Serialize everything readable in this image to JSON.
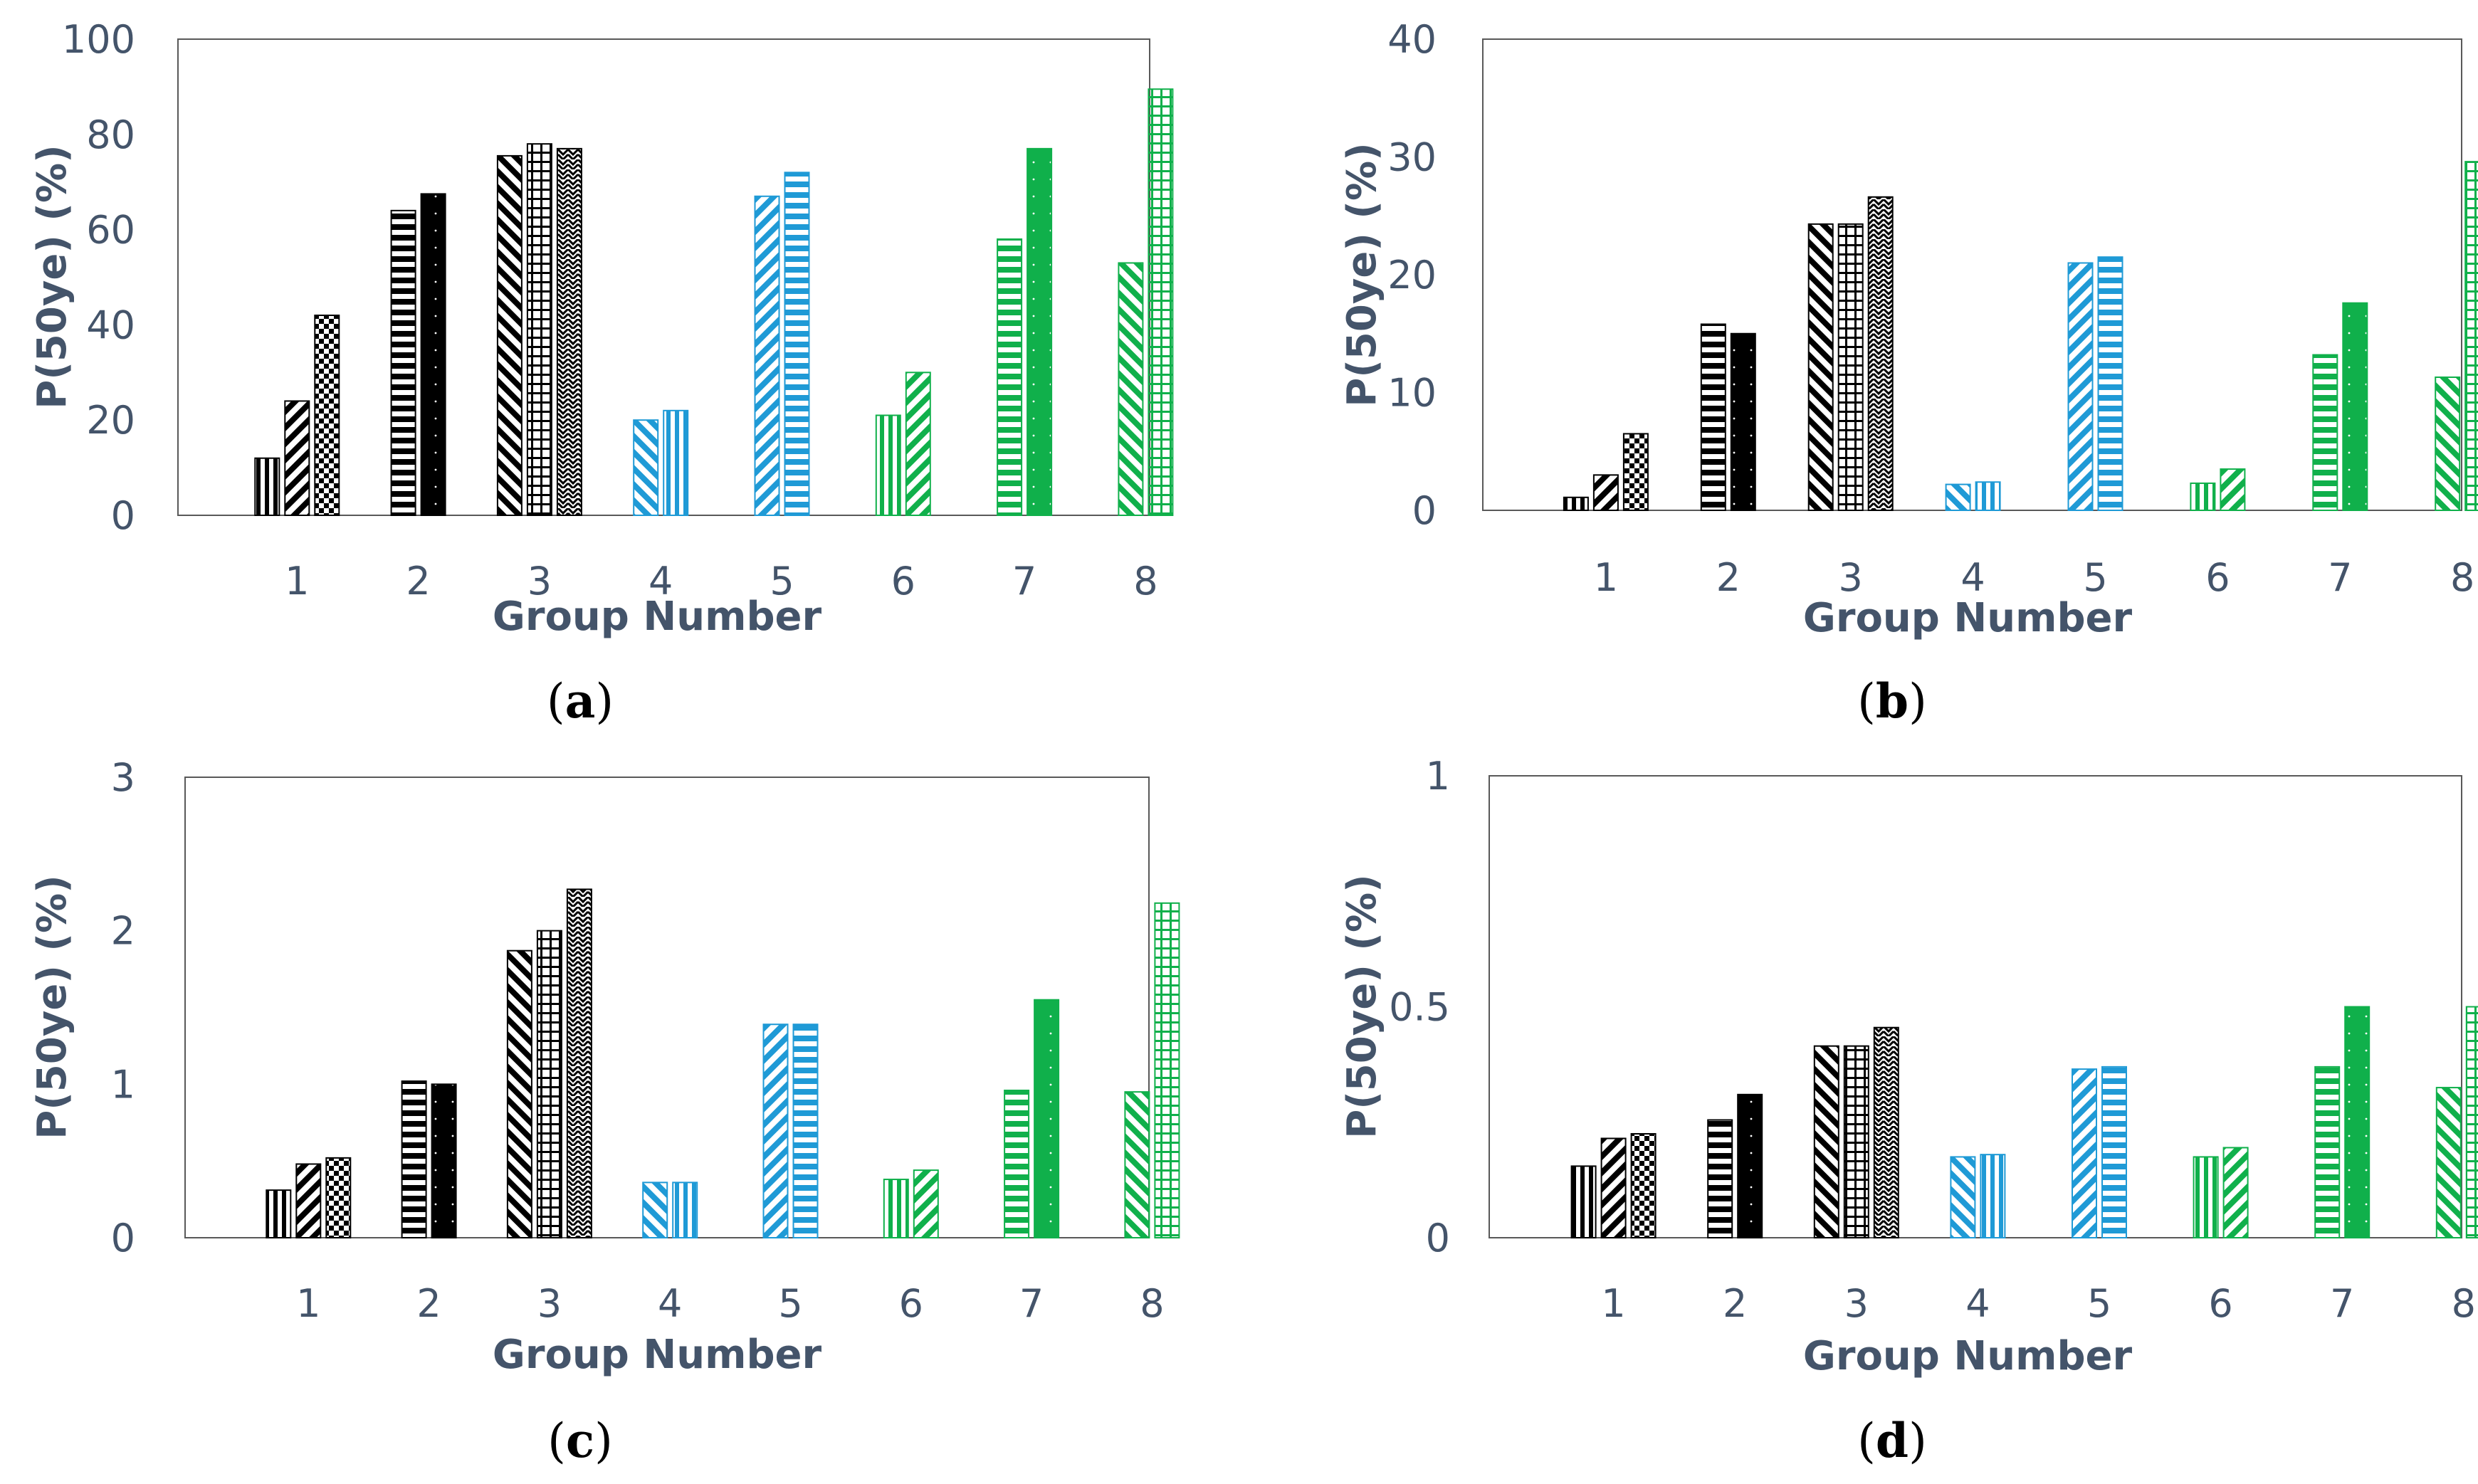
{
  "colors": {
    "black": "#000000",
    "blue": "#1f9ad6",
    "green": "#10b04b",
    "axis_text": "#44546a",
    "frame": "#595959"
  },
  "chart_data": [
    {
      "type": "bar",
      "panel_label": "a",
      "xlabel": "Group Number",
      "ylabel": "P(50ye) (%)",
      "ylim": [
        0,
        100
      ],
      "yticks": [
        "0",
        "20",
        "40",
        "60",
        "80",
        "100"
      ],
      "categories": [
        "1",
        "2",
        "3",
        "4",
        "5",
        "6",
        "7",
        "8"
      ],
      "groups": [
        {
          "category": "1",
          "bars": [
            {
              "value": 12,
              "color": "black",
              "pattern": "vstripe"
            },
            {
              "value": 24,
              "color": "black",
              "pattern": "diagup"
            },
            {
              "value": 42,
              "color": "black",
              "pattern": "check"
            }
          ]
        },
        {
          "category": "2",
          "bars": [
            {
              "value": 64,
              "color": "black",
              "pattern": "hstripe"
            },
            {
              "value": 67.5,
              "color": "black",
              "pattern": "solid"
            }
          ]
        },
        {
          "category": "3",
          "bars": [
            {
              "value": 75.5,
              "color": "black",
              "pattern": "diagdown"
            },
            {
              "value": 78,
              "color": "black",
              "pattern": "grid"
            },
            {
              "value": 77,
              "color": "black",
              "pattern": "zigzag"
            }
          ]
        },
        {
          "category": "4",
          "bars": [
            {
              "value": 20,
              "color": "blue",
              "pattern": "diagdown"
            },
            {
              "value": 22,
              "color": "blue",
              "pattern": "vstripe"
            }
          ]
        },
        {
          "category": "5",
          "bars": [
            {
              "value": 67,
              "color": "blue",
              "pattern": "diagup"
            },
            {
              "value": 72,
              "color": "blue",
              "pattern": "hstripe"
            }
          ]
        },
        {
          "category": "6",
          "bars": [
            {
              "value": 21,
              "color": "green",
              "pattern": "vstripe"
            },
            {
              "value": 30,
              "color": "green",
              "pattern": "diagup"
            }
          ]
        },
        {
          "category": "7",
          "bars": [
            {
              "value": 58,
              "color": "green",
              "pattern": "hstripe"
            },
            {
              "value": 77,
              "color": "green",
              "pattern": "solid"
            }
          ]
        },
        {
          "category": "8",
          "bars": [
            {
              "value": 53,
              "color": "green",
              "pattern": "diagdown"
            },
            {
              "value": 89.5,
              "color": "green",
              "pattern": "grid"
            }
          ]
        }
      ]
    },
    {
      "type": "bar",
      "panel_label": "b",
      "xlabel": "Group Number",
      "ylabel": "P(50ye) (%)",
      "ylim": [
        0,
        40
      ],
      "yticks": [
        "0",
        "10",
        "20",
        "30",
        "40"
      ],
      "categories": [
        "1",
        "2",
        "3",
        "4",
        "5",
        "6",
        "7",
        "8"
      ],
      "groups": [
        {
          "category": "1",
          "bars": [
            {
              "value": 1.1,
              "color": "black",
              "pattern": "vstripe"
            },
            {
              "value": 3,
              "color": "black",
              "pattern": "diagup"
            },
            {
              "value": 6.5,
              "color": "black",
              "pattern": "check"
            }
          ]
        },
        {
          "category": "2",
          "bars": [
            {
              "value": 15.8,
              "color": "black",
              "pattern": "hstripe"
            },
            {
              "value": 15,
              "color": "black",
              "pattern": "solid"
            }
          ]
        },
        {
          "category": "3",
          "bars": [
            {
              "value": 24.3,
              "color": "black",
              "pattern": "diagdown"
            },
            {
              "value": 24.3,
              "color": "black",
              "pattern": "grid"
            },
            {
              "value": 26.6,
              "color": "black",
              "pattern": "zigzag"
            }
          ]
        },
        {
          "category": "4",
          "bars": [
            {
              "value": 2.2,
              "color": "blue",
              "pattern": "diagdown"
            },
            {
              "value": 2.4,
              "color": "blue",
              "pattern": "vstripe"
            }
          ]
        },
        {
          "category": "5",
          "bars": [
            {
              "value": 21,
              "color": "blue",
              "pattern": "diagup"
            },
            {
              "value": 21.5,
              "color": "blue",
              "pattern": "hstripe"
            }
          ]
        },
        {
          "category": "6",
          "bars": [
            {
              "value": 2.3,
              "color": "green",
              "pattern": "vstripe"
            },
            {
              "value": 3.5,
              "color": "green",
              "pattern": "diagup"
            }
          ]
        },
        {
          "category": "7",
          "bars": [
            {
              "value": 13.2,
              "color": "green",
              "pattern": "hstripe"
            },
            {
              "value": 17.6,
              "color": "green",
              "pattern": "solid"
            }
          ]
        },
        {
          "category": "8",
          "bars": [
            {
              "value": 11.3,
              "color": "green",
              "pattern": "diagdown"
            },
            {
              "value": 29.6,
              "color": "green",
              "pattern": "grid"
            }
          ]
        }
      ]
    },
    {
      "type": "bar",
      "panel_label": "c",
      "xlabel": "Group Number",
      "ylabel": "P(50ye) (%)",
      "ylim": [
        0,
        3
      ],
      "yticks": [
        "0",
        "1",
        "2",
        "3"
      ],
      "categories": [
        "1",
        "2",
        "3",
        "4",
        "5",
        "6",
        "7",
        "8"
      ],
      "groups": [
        {
          "category": "1",
          "bars": [
            {
              "value": 0.31,
              "color": "black",
              "pattern": "vstripe"
            },
            {
              "value": 0.48,
              "color": "black",
              "pattern": "diagup"
            },
            {
              "value": 0.52,
              "color": "black",
              "pattern": "check"
            }
          ]
        },
        {
          "category": "2",
          "bars": [
            {
              "value": 1.02,
              "color": "black",
              "pattern": "hstripe"
            },
            {
              "value": 1.0,
              "color": "black",
              "pattern": "solid"
            }
          ]
        },
        {
          "category": "3",
          "bars": [
            {
              "value": 1.87,
              "color": "black",
              "pattern": "diagdown"
            },
            {
              "value": 2.0,
              "color": "black",
              "pattern": "grid"
            },
            {
              "value": 2.27,
              "color": "black",
              "pattern": "zigzag"
            }
          ]
        },
        {
          "category": "4",
          "bars": [
            {
              "value": 0.36,
              "color": "blue",
              "pattern": "diagdown"
            },
            {
              "value": 0.36,
              "color": "blue",
              "pattern": "vstripe"
            }
          ]
        },
        {
          "category": "5",
          "bars": [
            {
              "value": 1.39,
              "color": "blue",
              "pattern": "diagup"
            },
            {
              "value": 1.39,
              "color": "blue",
              "pattern": "hstripe"
            }
          ]
        },
        {
          "category": "6",
          "bars": [
            {
              "value": 0.38,
              "color": "green",
              "pattern": "vstripe"
            },
            {
              "value": 0.44,
              "color": "green",
              "pattern": "diagup"
            }
          ]
        },
        {
          "category": "7",
          "bars": [
            {
              "value": 0.96,
              "color": "green",
              "pattern": "hstripe"
            },
            {
              "value": 1.55,
              "color": "green",
              "pattern": "solid"
            }
          ]
        },
        {
          "category": "8",
          "bars": [
            {
              "value": 0.95,
              "color": "green",
              "pattern": "diagdown"
            },
            {
              "value": 2.18,
              "color": "green",
              "pattern": "grid"
            }
          ]
        }
      ]
    },
    {
      "type": "bar",
      "panel_label": "d",
      "xlabel": "Group Number",
      "ylabel": "P(50ye) (%)",
      "ylim": [
        0,
        1
      ],
      "yticks": [
        "0",
        "0.5",
        "1"
      ],
      "categories": [
        "1",
        "2",
        "3",
        "4",
        "5",
        "6",
        "7",
        "8"
      ],
      "groups": [
        {
          "category": "1",
          "bars": [
            {
              "value": 0.155,
              "color": "black",
              "pattern": "vstripe"
            },
            {
              "value": 0.215,
              "color": "black",
              "pattern": "diagup"
            },
            {
              "value": 0.225,
              "color": "black",
              "pattern": "check"
            }
          ]
        },
        {
          "category": "2",
          "bars": [
            {
              "value": 0.255,
              "color": "black",
              "pattern": "hstripe"
            },
            {
              "value": 0.31,
              "color": "black",
              "pattern": "solid"
            }
          ]
        },
        {
          "category": "3",
          "bars": [
            {
              "value": 0.415,
              "color": "black",
              "pattern": "diagdown"
            },
            {
              "value": 0.415,
              "color": "black",
              "pattern": "grid"
            },
            {
              "value": 0.455,
              "color": "black",
              "pattern": "zigzag"
            }
          ]
        },
        {
          "category": "4",
          "bars": [
            {
              "value": 0.175,
              "color": "blue",
              "pattern": "diagdown"
            },
            {
              "value": 0.18,
              "color": "blue",
              "pattern": "vstripe"
            }
          ]
        },
        {
          "category": "5",
          "bars": [
            {
              "value": 0.365,
              "color": "blue",
              "pattern": "diagup"
            },
            {
              "value": 0.37,
              "color": "blue",
              "pattern": "hstripe"
            }
          ]
        },
        {
          "category": "6",
          "bars": [
            {
              "value": 0.175,
              "color": "green",
              "pattern": "vstripe"
            },
            {
              "value": 0.195,
              "color": "green",
              "pattern": "diagup"
            }
          ]
        },
        {
          "category": "7",
          "bars": [
            {
              "value": 0.37,
              "color": "green",
              "pattern": "hstripe"
            },
            {
              "value": 0.5,
              "color": "green",
              "pattern": "solid"
            }
          ]
        },
        {
          "category": "8",
          "bars": [
            {
              "value": 0.325,
              "color": "green",
              "pattern": "diagdown"
            },
            {
              "value": 0.5,
              "color": "green",
              "pattern": "grid"
            }
          ]
        }
      ]
    }
  ]
}
